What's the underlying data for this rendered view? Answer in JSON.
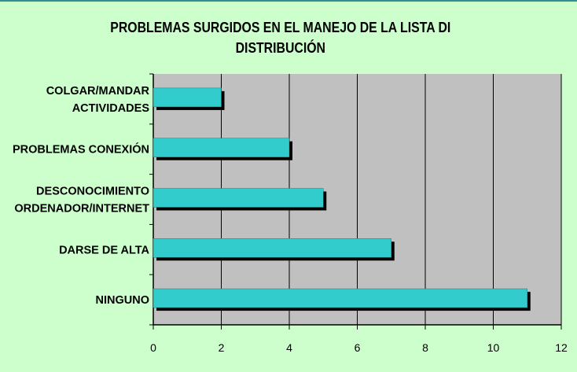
{
  "chart_data": {
    "type": "bar",
    "orientation": "horizontal",
    "title": "PROBLEMAS SURGIDOS EN EL MANEJO DE LA LISTA DI\nDISTRIBUCIÓN",
    "categories": [
      [
        "COLGAR/MANDAR",
        "ACTIVIDADES"
      ],
      [
        "PROBLEMAS CONEXIÓN"
      ],
      [
        "DESCONOCIMIENTO",
        "ORDENADOR/INTERNET"
      ],
      [
        "DARSE DE ALTA"
      ],
      [
        "NINGUNO"
      ]
    ],
    "values": [
      2,
      4,
      5,
      7,
      11
    ],
    "xlim": [
      0,
      12
    ],
    "xticks": [
      0,
      2,
      4,
      6,
      8,
      10,
      12
    ],
    "grid": true,
    "legend": "none",
    "colors": {
      "background": "#ccffcc",
      "plot_area": "#c0c0c0",
      "bar": "#33cccc",
      "bar_shadow": "#000000",
      "gridline": "#000000",
      "frame_top": "#2f8f8f"
    }
  }
}
